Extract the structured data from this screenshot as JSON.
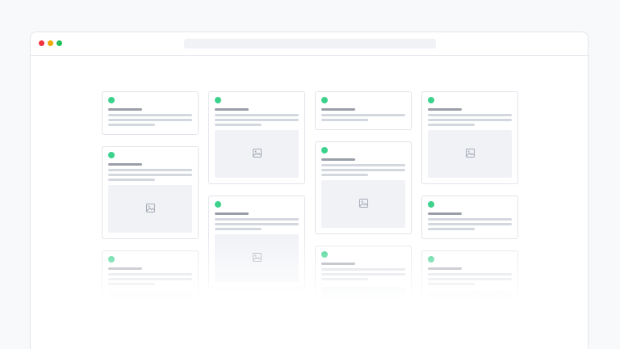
{
  "colors": {
    "close": "#f0323c",
    "minimize": "#f0a800",
    "maximize": "#1fc05a",
    "status": "#3cd28c"
  },
  "url_bar": {
    "value": ""
  },
  "columns": [
    [
      {
        "lines": 3,
        "image": false
      },
      {
        "lines": 3,
        "image": true
      },
      {
        "lines": 3,
        "image": true
      }
    ],
    [
      {
        "lines": 3,
        "image": true
      },
      {
        "lines": 3,
        "image": true
      },
      {
        "lines": 3,
        "image": true
      }
    ],
    [
      {
        "lines": 2,
        "image": false
      },
      {
        "lines": 3,
        "image": true
      },
      {
        "lines": 3,
        "image": true
      }
    ],
    [
      {
        "lines": 3,
        "image": true
      },
      {
        "lines": 3,
        "image": false
      },
      {
        "lines": 3,
        "image": true
      }
    ]
  ]
}
